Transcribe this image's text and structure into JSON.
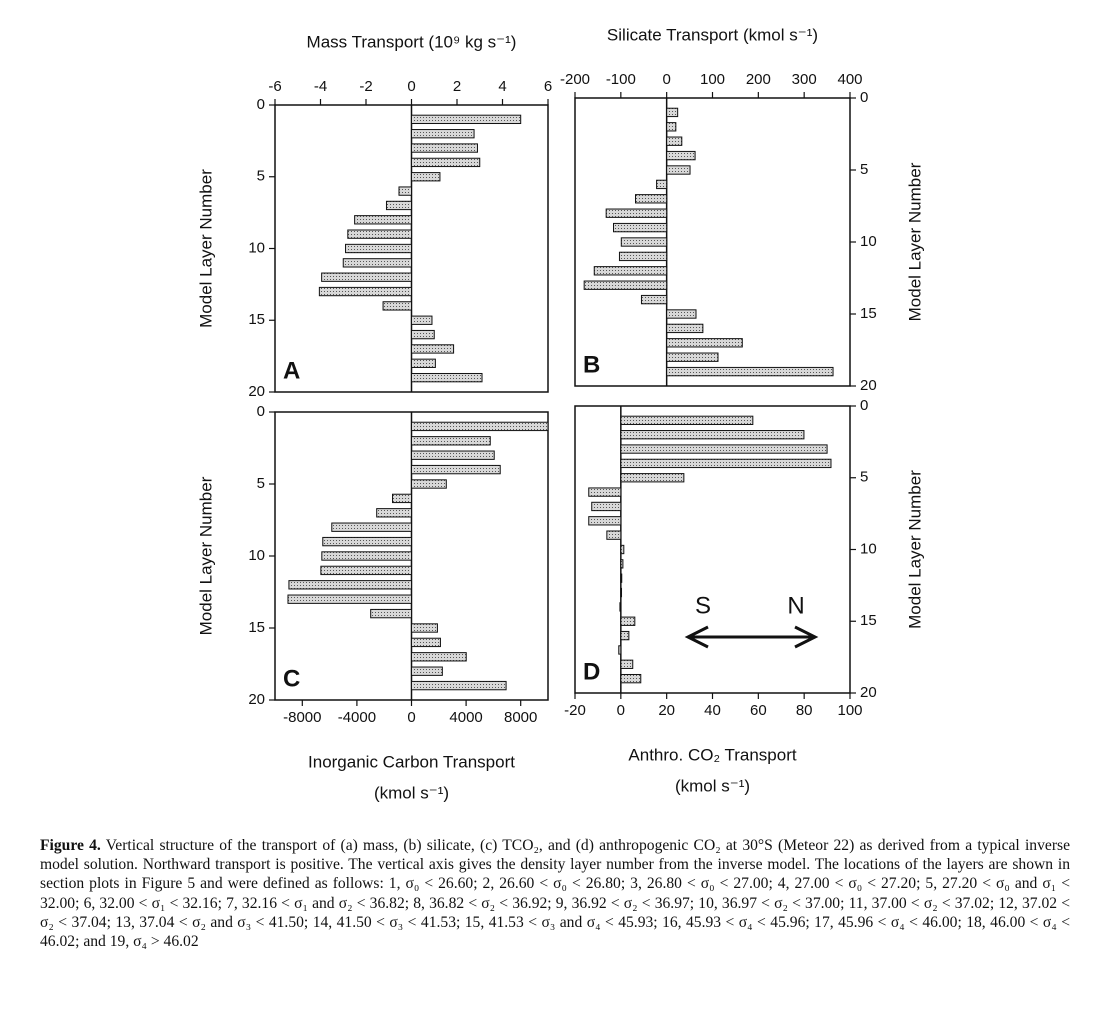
{
  "chart_data": [
    {
      "type": "bar",
      "orientation": "horizontal",
      "panel_label": "A",
      "xlabel": [
        "Mass Transport (10⁹ kg s⁻¹)"
      ],
      "xaxis_position": "top",
      "ylabel": "Model Layer Number",
      "yaxis_position": "left",
      "xlim": [
        -6,
        6
      ],
      "xticks": [
        -6,
        -4,
        -2,
        0,
        2,
        4,
        6
      ],
      "ylim": [
        0,
        20
      ],
      "yticks": [
        0,
        5,
        10,
        15,
        20
      ],
      "y_inverted": true,
      "y": [
        1,
        2,
        3,
        4,
        5,
        6,
        7,
        8,
        9,
        10,
        11,
        12,
        13,
        14,
        15,
        16,
        17,
        18,
        19
      ],
      "values": [
        4.8,
        2.75,
        2.9,
        3.0,
        1.25,
        -0.55,
        -1.1,
        -2.5,
        -2.8,
        -2.9,
        -3.0,
        -3.95,
        -4.05,
        -1.25,
        0.9,
        1.0,
        1.85,
        1.05,
        3.1
      ],
      "color": "#cfcfcf"
    },
    {
      "type": "bar",
      "orientation": "horizontal",
      "panel_label": "B",
      "xlabel": [
        "Silicate Transport (kmol s⁻¹)"
      ],
      "xaxis_position": "top",
      "ylabel": "Model Layer Number",
      "yaxis_position": "right",
      "xlim": [
        -200,
        400
      ],
      "xticks": [
        -200,
        -100,
        0,
        100,
        200,
        300,
        400
      ],
      "ylim": [
        0,
        20
      ],
      "yticks": [
        0,
        5,
        10,
        15,
        20
      ],
      "y_inverted": true,
      "y": [
        1,
        2,
        3,
        4,
        5,
        6,
        7,
        8,
        9,
        10,
        11,
        12,
        13,
        14,
        15,
        16,
        17,
        18,
        19
      ],
      "values": [
        24,
        20,
        33,
        62,
        51,
        -22,
        -68,
        -132,
        -116,
        -99,
        -103,
        -158,
        -180,
        -55,
        64,
        79,
        165,
        112,
        363
      ],
      "color": "#cfcfcf"
    },
    {
      "type": "bar",
      "orientation": "horizontal",
      "panel_label": "C",
      "xlabel": [
        "Inorganic Carbon Transport",
        "(kmol s⁻¹)"
      ],
      "xaxis_position": "bottom",
      "ylabel": "Model Layer Number",
      "yaxis_position": "left",
      "xlim": [
        -10000,
        10000
      ],
      "xticks": [
        -8000,
        -4000,
        0,
        4000,
        8000
      ],
      "ylim": [
        0,
        20
      ],
      "yticks": [
        0,
        5,
        10,
        15,
        20
      ],
      "y_inverted": true,
      "y": [
        1,
        2,
        3,
        4,
        5,
        6,
        7,
        8,
        9,
        10,
        11,
        12,
        13,
        14,
        15,
        16,
        17,
        18,
        19
      ],
      "values": [
        10000,
        5770,
        6060,
        6500,
        2550,
        -1390,
        -2550,
        -5840,
        -6500,
        -6570,
        -6640,
        -8980,
        -9050,
        -2990,
        1900,
        2120,
        4010,
        2260,
        6930
      ],
      "color": "#cfcfcf"
    },
    {
      "type": "bar",
      "orientation": "horizontal",
      "panel_label": "D",
      "xlabel": [
        "Anthro. CO₂ Transport",
        "(kmol s⁻¹)"
      ],
      "xaxis_position": "bottom",
      "ylabel": "Model Layer Number",
      "yaxis_position": "right",
      "xlim": [
        -20,
        100
      ],
      "xticks": [
        -20,
        0,
        20,
        40,
        60,
        80,
        100
      ],
      "ylim": [
        0,
        20
      ],
      "yticks": [
        0,
        5,
        10,
        15,
        20
      ],
      "y_inverted": true,
      "y": [
        1,
        2,
        3,
        4,
        5,
        6,
        7,
        8,
        9,
        10,
        11,
        12,
        13,
        14,
        15,
        16,
        17,
        18,
        19
      ],
      "values": [
        57.6,
        79.9,
        90,
        91.7,
        27.5,
        -14,
        -12.7,
        -14,
        -6.1,
        1.3,
        0.9,
        0.4,
        0.3,
        -0.4,
        6.1,
        3.5,
        -0.9,
        5.2,
        8.7
      ],
      "color": "#cfcfcf",
      "annotations": [
        {
          "text": "S"
        },
        {
          "text": "N"
        }
      ]
    }
  ],
  "caption": {
    "label": "Figure 4.",
    "text": "Vertical structure of the transport of (a) mass, (b) silicate, (c) TCO₂, and (d) anthropogenic CO₂ at 30°S (Meteor 22) as derived from a typical inverse model solution. Northward transport is positive. The vertical axis gives the density layer number from the inverse model. The locations of the layers are shown in section plots in Figure 5 and were defined as follows: 1, σ₀ < 26.60; 2, 26.60 < σ₀ < 26.80; 3, 26.80 < σ₀ < 27.00; 4, 27.00 < σ₀ < 27.20; 5, 27.20 < σ₀ and σ₁ < 32.00; 6, 32.00 < σ₁ < 32.16; 7, 32.16 < σ₁ and σ₂ < 36.82; 8, 36.82 < σ₂ < 36.92; 9, 36.92 < σ₂ < 36.97; 10, 36.97 < σ₂ < 37.00; 11, 37.00 < σ₂ < 37.02; 12, 37.02 < σ₂ < 37.04; 13, 37.04 < σ₂ and σ₃ < 41.50; 14, 41.50 < σ₃ < 41.53; 15, 41.53 < σ₃ and σ₄ < 45.93; 16, 45.93 < σ₄ < 45.96; 17, 45.96 < σ₄ < 46.00; 18, 46.00 < σ₄ < 46.02; and 19, σ₄ > 46.02"
  }
}
